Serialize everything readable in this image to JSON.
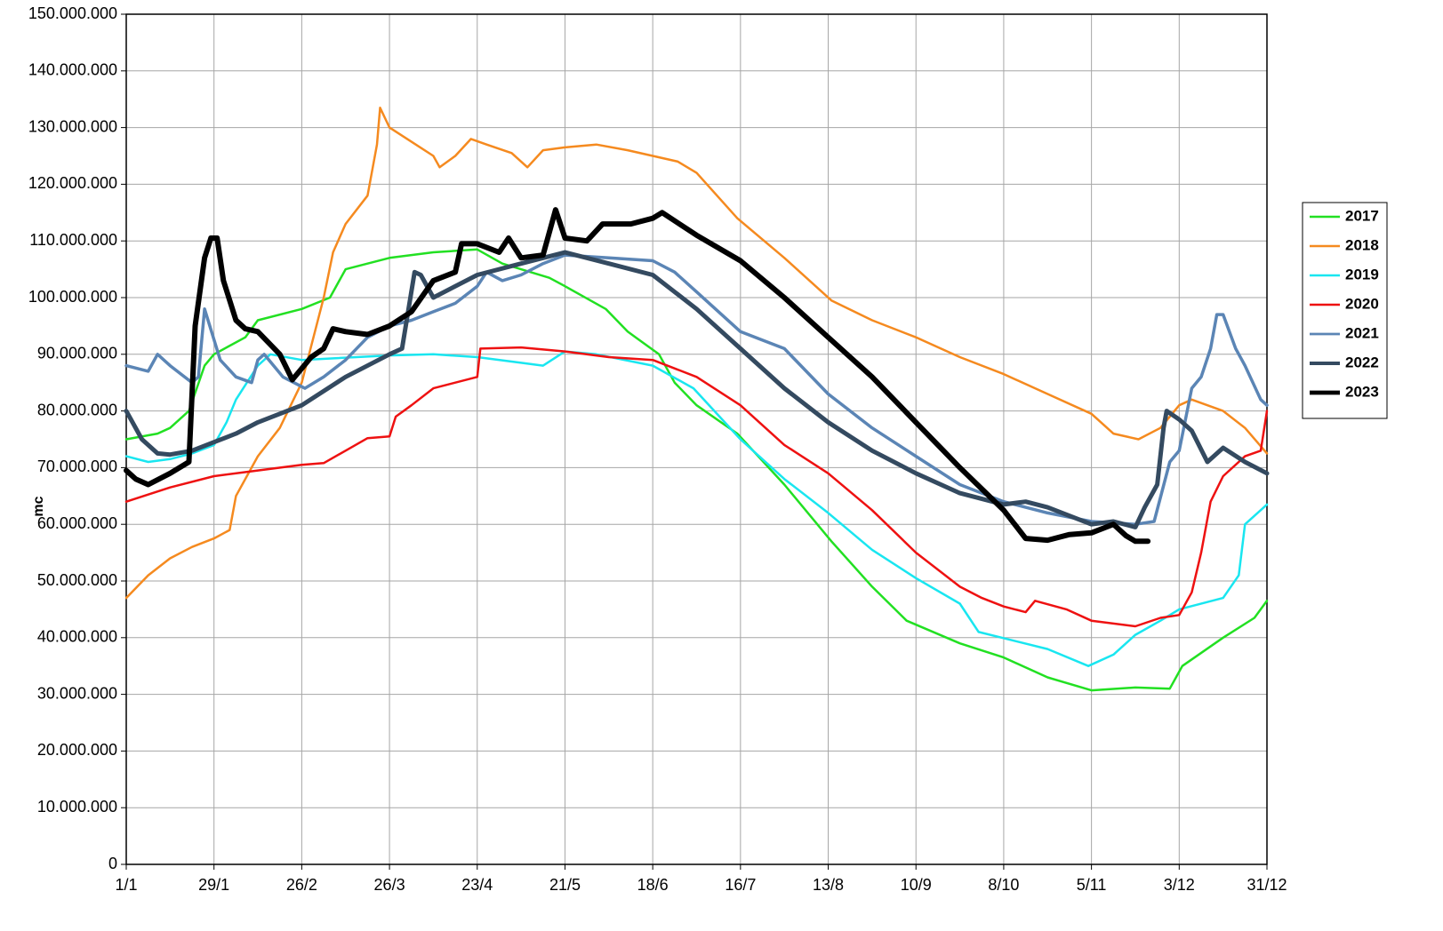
{
  "chart_data": {
    "type": "line",
    "y_label": "mc",
    "xlim": [
      0,
      364
    ],
    "ylim": [
      0,
      150000000
    ],
    "xticks": [
      {
        "value": 0,
        "label": "1/1"
      },
      {
        "value": 28,
        "label": "29/1"
      },
      {
        "value": 56,
        "label": "26/2"
      },
      {
        "value": 84,
        "label": "26/3"
      },
      {
        "value": 112,
        "label": "23/4"
      },
      {
        "value": 140,
        "label": "21/5"
      },
      {
        "value": 168,
        "label": "18/6"
      },
      {
        "value": 196,
        "label": "16/7"
      },
      {
        "value": 224,
        "label": "13/8"
      },
      {
        "value": 252,
        "label": "10/9"
      },
      {
        "value": 280,
        "label": "8/10"
      },
      {
        "value": 308,
        "label": "5/11"
      },
      {
        "value": 336,
        "label": "3/12"
      },
      {
        "value": 364,
        "label": "31/12"
      }
    ],
    "yticks": [
      {
        "value": 0,
        "label": "0"
      },
      {
        "value": 10000000,
        "label": "10.000.000"
      },
      {
        "value": 20000000,
        "label": "20.000.000"
      },
      {
        "value": 30000000,
        "label": "30.000.000"
      },
      {
        "value": 40000000,
        "label": "40.000.000"
      },
      {
        "value": 50000000,
        "label": "50.000.000"
      },
      {
        "value": 60000000,
        "label": "60.000.000"
      },
      {
        "value": 70000000,
        "label": "70.000.000"
      },
      {
        "value": 80000000,
        "label": "80.000.000"
      },
      {
        "value": 90000000,
        "label": "90.000.000"
      },
      {
        "value": 100000000,
        "label": "100.000.000"
      },
      {
        "value": 110000000,
        "label": "110.000.000"
      },
      {
        "value": 120000000,
        "label": "120.000.000"
      },
      {
        "value": 130000000,
        "label": "130.000.000"
      },
      {
        "value": 140000000,
        "label": "140.000.000"
      },
      {
        "value": 150000000,
        "label": "150.000.000"
      }
    ],
    "grid": true,
    "legend": "right",
    "series": [
      {
        "name": "2017",
        "color": "#22e022",
        "width": 2.5,
        "x": [
          0,
          10,
          14,
          20,
          25,
          28,
          38,
          42,
          56,
          65,
          70,
          84,
          98,
          112,
          120,
          135,
          140,
          153,
          160,
          170,
          175,
          182,
          195,
          210,
          225,
          238,
          249,
          266,
          280,
          294,
          308,
          322,
          333,
          337,
          350,
          360,
          364
        ],
        "values": [
          75000000,
          76000000,
          77000000,
          80000000,
          88000000,
          90000000,
          93000000,
          96000000,
          98000000,
          100000000,
          105000000,
          107000000,
          108000000,
          108500000,
          106000000,
          103500000,
          102000000,
          98000000,
          94000000,
          90000000,
          85000000,
          81000000,
          76000000,
          67000000,
          57000000,
          49000000,
          43000000,
          39000000,
          36500000,
          33000000,
          30700000,
          31200000,
          31000000,
          35000000,
          40000000,
          43500000,
          46500000
        ]
      },
      {
        "name": "2018",
        "color": "#f58a1f",
        "width": 2.5,
        "x": [
          0,
          7,
          14,
          21,
          28,
          33,
          35,
          42,
          49,
          56,
          63,
          66,
          70,
          77,
          80,
          81,
          84,
          91,
          98,
          100,
          105,
          110,
          115,
          123,
          128,
          133,
          140,
          150,
          160,
          168,
          176,
          182,
          195,
          210,
          225,
          238,
          252,
          266,
          280,
          294,
          308,
          315,
          323,
          330,
          336,
          340,
          350,
          357,
          364
        ],
        "values": [
          47000000,
          51000000,
          54000000,
          56000000,
          57500000,
          59000000,
          65000000,
          72000000,
          77000000,
          85000000,
          100000000,
          108000000,
          113000000,
          118000000,
          127000000,
          133500000,
          130000000,
          127500000,
          125000000,
          123000000,
          125000000,
          128000000,
          127000000,
          125500000,
          123000000,
          126000000,
          126500000,
          127000000,
          126000000,
          125000000,
          124000000,
          122000000,
          114000000,
          107000000,
          99500000,
          96000000,
          93000000,
          89500000,
          86500000,
          83000000,
          79500000,
          76000000,
          75000000,
          77000000,
          81000000,
          82000000,
          80000000,
          77000000,
          72500000
        ]
      },
      {
        "name": "2019",
        "color": "#19e6f0",
        "width": 2.5,
        "x": [
          0,
          7,
          14,
          21,
          28,
          32,
          35,
          42,
          46,
          56,
          84,
          98,
          112,
          126,
          133,
          140,
          150,
          168,
          181,
          196,
          210,
          224,
          238,
          252,
          266,
          272,
          294,
          307,
          315,
          322,
          330,
          336,
          350,
          355,
          357,
          364
        ],
        "values": [
          72000000,
          71000000,
          71500000,
          72500000,
          74000000,
          78000000,
          82000000,
          88000000,
          90000000,
          89000000,
          89800000,
          90000000,
          89500000,
          88500000,
          88000000,
          90500000,
          90000000,
          88000000,
          84000000,
          75000000,
          68000000,
          62000000,
          55500000,
          50500000,
          46000000,
          41000000,
          38000000,
          35000000,
          37000000,
          40500000,
          43000000,
          45000000,
          47000000,
          51000000,
          60000000,
          63500000
        ]
      },
      {
        "name": "2020",
        "color": "#ee1111",
        "width": 2.5,
        "x": [
          0,
          14,
          28,
          42,
          56,
          63,
          70,
          77,
          84,
          86,
          91,
          98,
          112,
          113,
          126,
          140,
          154,
          168,
          182,
          196,
          210,
          224,
          238,
          252,
          266,
          273,
          280,
          287,
          290,
          300,
          308,
          322,
          330,
          336,
          340,
          343,
          346,
          350,
          357,
          362,
          364
        ],
        "values": [
          64000000,
          66500000,
          68500000,
          69500000,
          70500000,
          70800000,
          73000000,
          75200000,
          75500000,
          79000000,
          81000000,
          84000000,
          86000000,
          91000000,
          91200000,
          90500000,
          89500000,
          89000000,
          86000000,
          81000000,
          74000000,
          69000000,
          62500000,
          55000000,
          49000000,
          47000000,
          45500000,
          44500000,
          46500000,
          45000000,
          43000000,
          42000000,
          43500000,
          44000000,
          48000000,
          55000000,
          64000000,
          68500000,
          72000000,
          73000000,
          80000000
        ]
      },
      {
        "name": "2021",
        "color": "#5b85b5",
        "width": 3.5,
        "x": [
          0,
          7,
          10,
          14,
          21,
          23,
          25,
          30,
          35,
          40,
          42,
          44,
          50,
          57,
          63,
          70,
          77,
          84,
          91,
          98,
          105,
          112,
          115,
          120,
          126,
          133,
          140,
          154,
          168,
          175,
          182,
          196,
          210,
          224,
          238,
          252,
          266,
          280,
          294,
          308,
          322,
          328,
          333,
          336,
          340,
          343,
          346,
          348,
          350,
          354,
          357,
          362,
          364
        ],
        "values": [
          88000000,
          87000000,
          90000000,
          88000000,
          85000000,
          86000000,
          98000000,
          89000000,
          86000000,
          85000000,
          89000000,
          90000000,
          86000000,
          84000000,
          86000000,
          89000000,
          93000000,
          95000000,
          96000000,
          97500000,
          99000000,
          102000000,
          104500000,
          103000000,
          104000000,
          106000000,
          107500000,
          107000000,
          106500000,
          104500000,
          101000000,
          94000000,
          91000000,
          83000000,
          77000000,
          72000000,
          67000000,
          64000000,
          62000000,
          60500000,
          60000000,
          60500000,
          71000000,
          73000000,
          84000000,
          86000000,
          91000000,
          97000000,
          97000000,
          91000000,
          88000000,
          82000000,
          81000000
        ]
      },
      {
        "name": "2022",
        "color": "#344a60",
        "width": 5,
        "x": [
          0,
          5,
          10,
          14,
          21,
          28,
          35,
          42,
          56,
          70,
          84,
          88,
          92,
          94,
          98,
          112,
          126,
          140,
          154,
          168,
          182,
          196,
          210,
          224,
          238,
          252,
          266,
          280,
          287,
          294,
          308,
          315,
          322,
          325,
          329,
          331,
          332,
          336,
          340,
          345,
          350,
          357,
          364
        ],
        "values": [
          80000000,
          75000000,
          72500000,
          72300000,
          73000000,
          74500000,
          76000000,
          78000000,
          81000000,
          86000000,
          90000000,
          91000000,
          104500000,
          104000000,
          100000000,
          104000000,
          106000000,
          108000000,
          106000000,
          104000000,
          98000000,
          91000000,
          84000000,
          78000000,
          73000000,
          69000000,
          65500000,
          63500000,
          64000000,
          63000000,
          60000000,
          60500000,
          59500000,
          63000000,
          67000000,
          77000000,
          80000000,
          78500000,
          76500000,
          71000000,
          73500000,
          71000000,
          69000000
        ]
      },
      {
        "name": "2023",
        "color": "#000000",
        "width": 6,
        "x": [
          0,
          3,
          7,
          14,
          20,
          22,
          25,
          27,
          29,
          31,
          35,
          38,
          42,
          49,
          53,
          59,
          63,
          66,
          70,
          77,
          84,
          91,
          98,
          105,
          107,
          112,
          119,
          122,
          126,
          133,
          137,
          140,
          147,
          152,
          161,
          168,
          171,
          182,
          196,
          210,
          224,
          238,
          252,
          266,
          280,
          287,
          294,
          301,
          308,
          315,
          319,
          322,
          326
        ],
        "values": [
          69500000,
          68000000,
          67000000,
          69000000,
          71000000,
          95000000,
          107000000,
          110500000,
          110500000,
          103000000,
          96000000,
          94500000,
          94000000,
          90000000,
          85500000,
          89500000,
          91000000,
          94500000,
          94000000,
          93500000,
          95000000,
          97500000,
          103000000,
          104500000,
          109500000,
          109500000,
          108000000,
          110500000,
          107000000,
          107500000,
          115500000,
          110500000,
          110000000,
          113000000,
          113000000,
          114000000,
          115000000,
          111000000,
          106500000,
          100000000,
          93000000,
          86000000,
          78000000,
          70000000,
          62500000,
          57500000,
          57200000,
          58200000,
          58500000,
          60000000,
          58000000,
          57000000,
          57000000
        ]
      }
    ]
  }
}
